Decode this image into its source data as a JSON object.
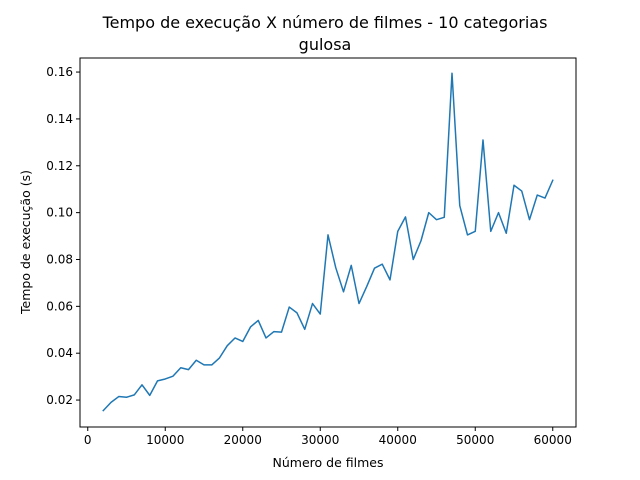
{
  "chart_data": {
    "type": "line",
    "title": "Tempo de execução X número de filmes - 10 categorias",
    "subtitle": "gulosa",
    "xlabel": "Número de filmes",
    "ylabel": "Tempo de execução (s)",
    "xlim": [
      -1000,
      63000
    ],
    "ylim": [
      0.0085,
      0.166
    ],
    "x_ticks": [
      0,
      10000,
      20000,
      30000,
      40000,
      50000,
      60000
    ],
    "x_tick_labels": [
      "0",
      "10000",
      "20000",
      "30000",
      "40000",
      "50000",
      "60000"
    ],
    "y_ticks": [
      0.02,
      0.04,
      0.06,
      0.08,
      0.1,
      0.12,
      0.14,
      0.16
    ],
    "y_tick_labels": [
      "0.02",
      "0.04",
      "0.06",
      "0.08",
      "0.10",
      "0.12",
      "0.14",
      "0.16"
    ],
    "grid": false,
    "series": [
      {
        "color": "#1f77b4",
        "x": [
          2000,
          3000,
          4000,
          5000,
          6000,
          7000,
          8000,
          9000,
          10000,
          11000,
          12000,
          13000,
          14000,
          15000,
          16000,
          17000,
          18000,
          19000,
          20000,
          21000,
          22000,
          23000,
          24000,
          25000,
          26000,
          27000,
          28000,
          29000,
          30000,
          31000,
          32000,
          33000,
          34000,
          35000,
          36000,
          37000,
          38000,
          39000,
          40000,
          41000,
          42000,
          43000,
          44000,
          45000,
          46000,
          47000,
          48000,
          49000,
          50000,
          51000,
          52000,
          53000,
          54000,
          55000,
          56000,
          57000,
          58000,
          59000,
          60000
        ],
        "y": [
          0.0155,
          0.019,
          0.0215,
          0.0212,
          0.0222,
          0.0265,
          0.022,
          0.0282,
          0.029,
          0.0302,
          0.0338,
          0.033,
          0.037,
          0.035,
          0.035,
          0.038,
          0.0432,
          0.0465,
          0.045,
          0.0512,
          0.054,
          0.0465,
          0.0492,
          0.049,
          0.0597,
          0.0572,
          0.0502,
          0.0612,
          0.0567,
          0.0905,
          0.0765,
          0.0662,
          0.0775,
          0.0612,
          0.0685,
          0.0763,
          0.078,
          0.0713,
          0.092,
          0.0982,
          0.08,
          0.088,
          0.1,
          0.097,
          0.098,
          0.1595,
          0.103,
          0.0905,
          0.092,
          0.131,
          0.092,
          0.1,
          0.0912,
          0.1117,
          0.1092,
          0.097,
          0.1075,
          0.1062,
          0.1138
        ]
      }
    ]
  }
}
